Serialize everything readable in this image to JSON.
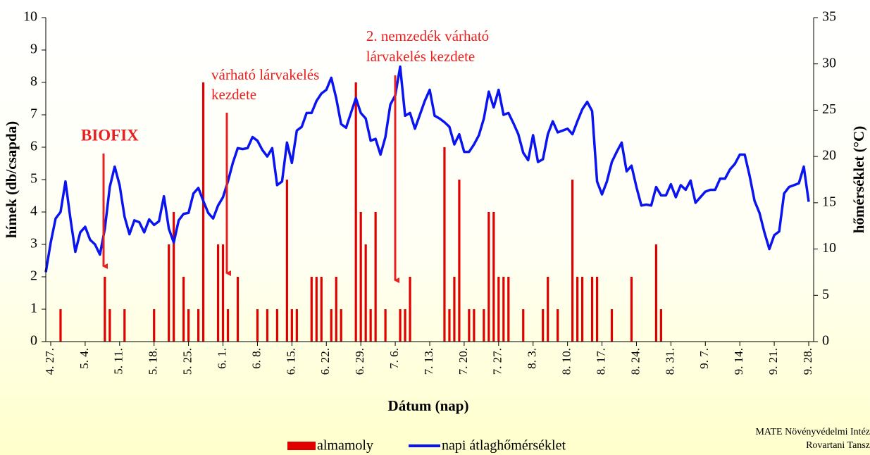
{
  "chart_data": {
    "type": "combo",
    "ylabel": "hímek (db/csapda)",
    "y2label": "hőmérséklet (°C)",
    "xlabel": "Dátum (nap)",
    "annotations": [
      "BIOFIX",
      "várható lárvakelés",
      "kezdete",
      "2. nemzedék várható",
      "lárvakelés  kezdete"
    ],
    "credit": [
      "MATE Növényvédelmi Intéz",
      "Rovartani Tansz"
    ],
    "categories": [
      null,
      "4. 27.",
      null,
      null,
      null,
      null,
      null,
      null,
      "5. 4.",
      null,
      null,
      null,
      null,
      null,
      null,
      "5. 11.",
      null,
      null,
      null,
      null,
      null,
      null,
      "5. 18.",
      null,
      null,
      null,
      null,
      null,
      null,
      "5. 25.",
      null,
      null,
      null,
      null,
      null,
      null,
      "6. 1.",
      null,
      null,
      null,
      null,
      null,
      null,
      "6. 8.",
      null,
      null,
      null,
      null,
      null,
      null,
      "6. 15.",
      null,
      null,
      null,
      null,
      null,
      null,
      "6. 22.",
      null,
      null,
      null,
      null,
      null,
      null,
      "6. 29.",
      null,
      null,
      null,
      null,
      null,
      null,
      "7. 6.",
      null,
      null,
      null,
      null,
      null,
      null,
      "7. 13.",
      null,
      null,
      null,
      null,
      null,
      null,
      "7. 20.",
      null,
      null,
      null,
      null,
      null,
      null,
      "7. 27.",
      null,
      null,
      null,
      null,
      null,
      null,
      "8. 3.",
      null,
      null,
      null,
      null,
      null,
      null,
      "8. 10.",
      null,
      null,
      null,
      null,
      null,
      null,
      "8. 17.",
      null,
      null,
      null,
      null,
      null,
      null,
      "8. 24.",
      null,
      null,
      null,
      null,
      null,
      null,
      "8. 31.",
      null,
      null,
      null,
      null,
      null,
      null,
      "9. 7.",
      null,
      null,
      null,
      null,
      null,
      null,
      "9. 14.",
      null,
      null,
      null,
      null,
      null,
      null,
      "9. 21.",
      null,
      null,
      null,
      null,
      null,
      null,
      "9. 28."
    ],
    "series": [
      {
        "name": "almamoly",
        "type": "bar",
        "color": "#e00000",
        "values": [
          0,
          0,
          0,
          1,
          0,
          0,
          0,
          0,
          0,
          0,
          0,
          0,
          2,
          1,
          0,
          0,
          1,
          0,
          0,
          0,
          0,
          0,
          1,
          0,
          0,
          3,
          4,
          0,
          2,
          1,
          0,
          1,
          8,
          0,
          0,
          3,
          3,
          1,
          0,
          2,
          0,
          0,
          0,
          1,
          0,
          1,
          0,
          1,
          0,
          5,
          1,
          1,
          0,
          0,
          2,
          2,
          2,
          0,
          1,
          2,
          1,
          0,
          0,
          8,
          4,
          3,
          1,
          4,
          0,
          1,
          0,
          0,
          1,
          1,
          2,
          0,
          0,
          0,
          0,
          0,
          0,
          6,
          1,
          2,
          5,
          0,
          1,
          1,
          0,
          1,
          4,
          4,
          2,
          2,
          2,
          0,
          0,
          1,
          0,
          0,
          0,
          1,
          2,
          0,
          1,
          0,
          0,
          5,
          2,
          2,
          0,
          2,
          2,
          0,
          0,
          1,
          0,
          0,
          0,
          2,
          0,
          0,
          0,
          0,
          3,
          1,
          0,
          0,
          0,
          0,
          0,
          0,
          0,
          0,
          0,
          0,
          0,
          0,
          0,
          0,
          0,
          0,
          0,
          0,
          0,
          0,
          0,
          0,
          0,
          0,
          0,
          0,
          0,
          0,
          0,
          0
        ]
      },
      {
        "name": "napi átlaghőmérséklet",
        "type": "line",
        "axis": "y2",
        "color": "#0a14f0",
        "values": [
          7.5,
          10.7,
          13.3,
          14,
          17.3,
          13.3,
          9.7,
          11.8,
          12.4,
          11,
          10.5,
          9.4,
          12.2,
          16.7,
          18.9,
          16.9,
          13.5,
          11.6,
          13.1,
          12.9,
          11.8,
          13.2,
          12.6,
          13,
          15.7,
          12.2,
          10.7,
          13.1,
          13.8,
          13.9,
          16,
          16.6,
          15.2,
          13.9,
          13.3,
          14.7,
          15.6,
          17.3,
          19.3,
          20.9,
          20.8,
          20.9,
          22.1,
          21.7,
          20.7,
          20,
          20.9,
          16.9,
          17.3,
          21.5,
          19.3,
          22.8,
          23.2,
          24.7,
          24.7,
          26,
          26.8,
          27.2,
          28.5,
          26.3,
          23.5,
          23.1,
          24.7,
          26.3,
          24.7,
          24.1,
          21.7,
          21.9,
          20.2,
          22.1,
          25.6,
          26.6,
          29.7,
          24.4,
          24.7,
          23,
          24.5,
          26,
          27.2,
          24.4,
          24.1,
          23.7,
          23.2,
          21.3,
          22.4,
          20.5,
          20.5,
          21.3,
          22.3,
          24.1,
          27,
          25.3,
          27.2,
          24.5,
          24.7,
          23.6,
          22.4,
          20.4,
          19.6,
          22.3,
          19.4,
          19.7,
          22.4,
          23.8,
          22.6,
          22.8,
          23,
          22.4,
          23.8,
          25.1,
          25.9,
          24.9,
          17.3,
          15.9,
          17.3,
          19.4,
          20.5,
          21.5,
          18.4,
          19,
          16.7,
          14.7,
          14.8,
          14.7,
          16.7,
          15.8,
          15.8,
          17,
          15.6,
          16.9,
          16.4,
          17.4,
          15,
          15.6,
          16.2,
          16.4,
          16.4,
          17.6,
          17.6,
          18.6,
          19.2,
          20.2,
          20.2,
          17.9,
          15.2,
          13.9,
          11.8,
          10,
          11.5,
          11.9,
          16,
          16.7,
          16.9,
          17.1,
          18.9,
          15.1
        ]
      }
    ],
    "ylim": [
      0,
      10
    ],
    "yticks": [
      0,
      1,
      2,
      3,
      4,
      5,
      6,
      7,
      8,
      9,
      10
    ],
    "y2lim": [
      0,
      35
    ],
    "y2ticks": [
      0,
      5,
      10,
      15,
      20,
      25,
      30,
      35
    ]
  }
}
